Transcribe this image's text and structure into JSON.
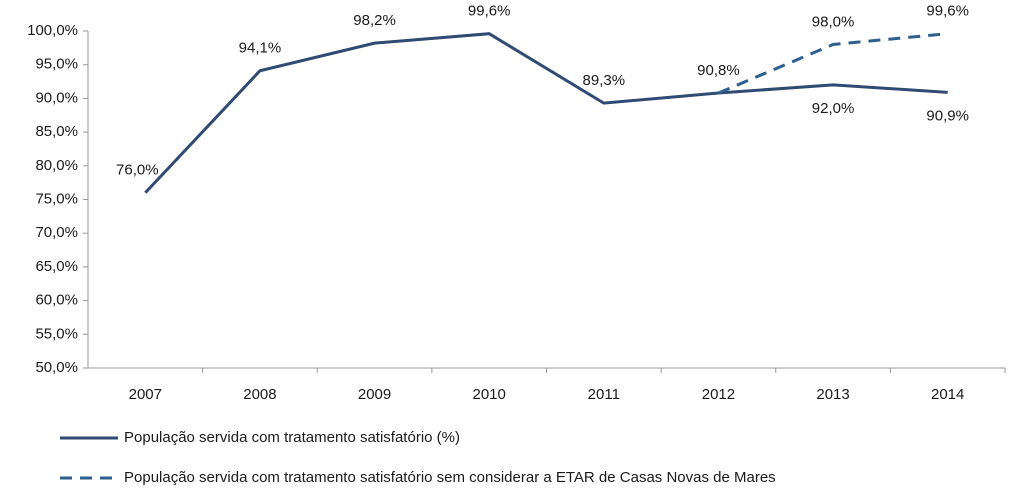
{
  "chart_data": {
    "type": "line",
    "categories": [
      "2007",
      "2008",
      "2009",
      "2010",
      "2011",
      "2012",
      "2013",
      "2014"
    ],
    "series": [
      {
        "name": "População servida com tratamento satisfatório (%)",
        "color": "#2f4b73",
        "dash": false,
        "values": [
          76.0,
          94.1,
          98.2,
          99.6,
          89.3,
          90.8,
          92.0,
          90.9
        ],
        "value_labels": [
          "76,0%",
          "94,1%",
          "98,2%",
          "99,6%",
          "89,3%",
          "90,8%",
          "92,0%",
          "90,9%"
        ]
      },
      {
        "name": "População servida com tratamento satisfatório sem considerar a ETAR de Casas Novas de Mares",
        "color": "#2f5f8f",
        "dash": true,
        "values": [
          null,
          null,
          null,
          null,
          null,
          90.8,
          98.0,
          99.6
        ],
        "value_labels": [
          null,
          null,
          null,
          null,
          null,
          null,
          "98,0%",
          "99,6%"
        ]
      }
    ],
    "ylim": [
      50,
      100
    ],
    "yticks": [
      {
        "value": 50,
        "label": "50,0%"
      },
      {
        "value": 55,
        "label": "55,0%"
      },
      {
        "value": 60,
        "label": "60,0%"
      },
      {
        "value": 65,
        "label": "65,0%"
      },
      {
        "value": 70,
        "label": "70,0%"
      },
      {
        "value": 75,
        "label": "75,0%"
      },
      {
        "value": 80,
        "label": "80,0%"
      },
      {
        "value": 85,
        "label": "85,0%"
      },
      {
        "value": 90,
        "label": "90,0%"
      },
      {
        "value": 95,
        "label": "95,0%"
      },
      {
        "value": 100,
        "label": "100,0%"
      }
    ],
    "grid": false
  }
}
